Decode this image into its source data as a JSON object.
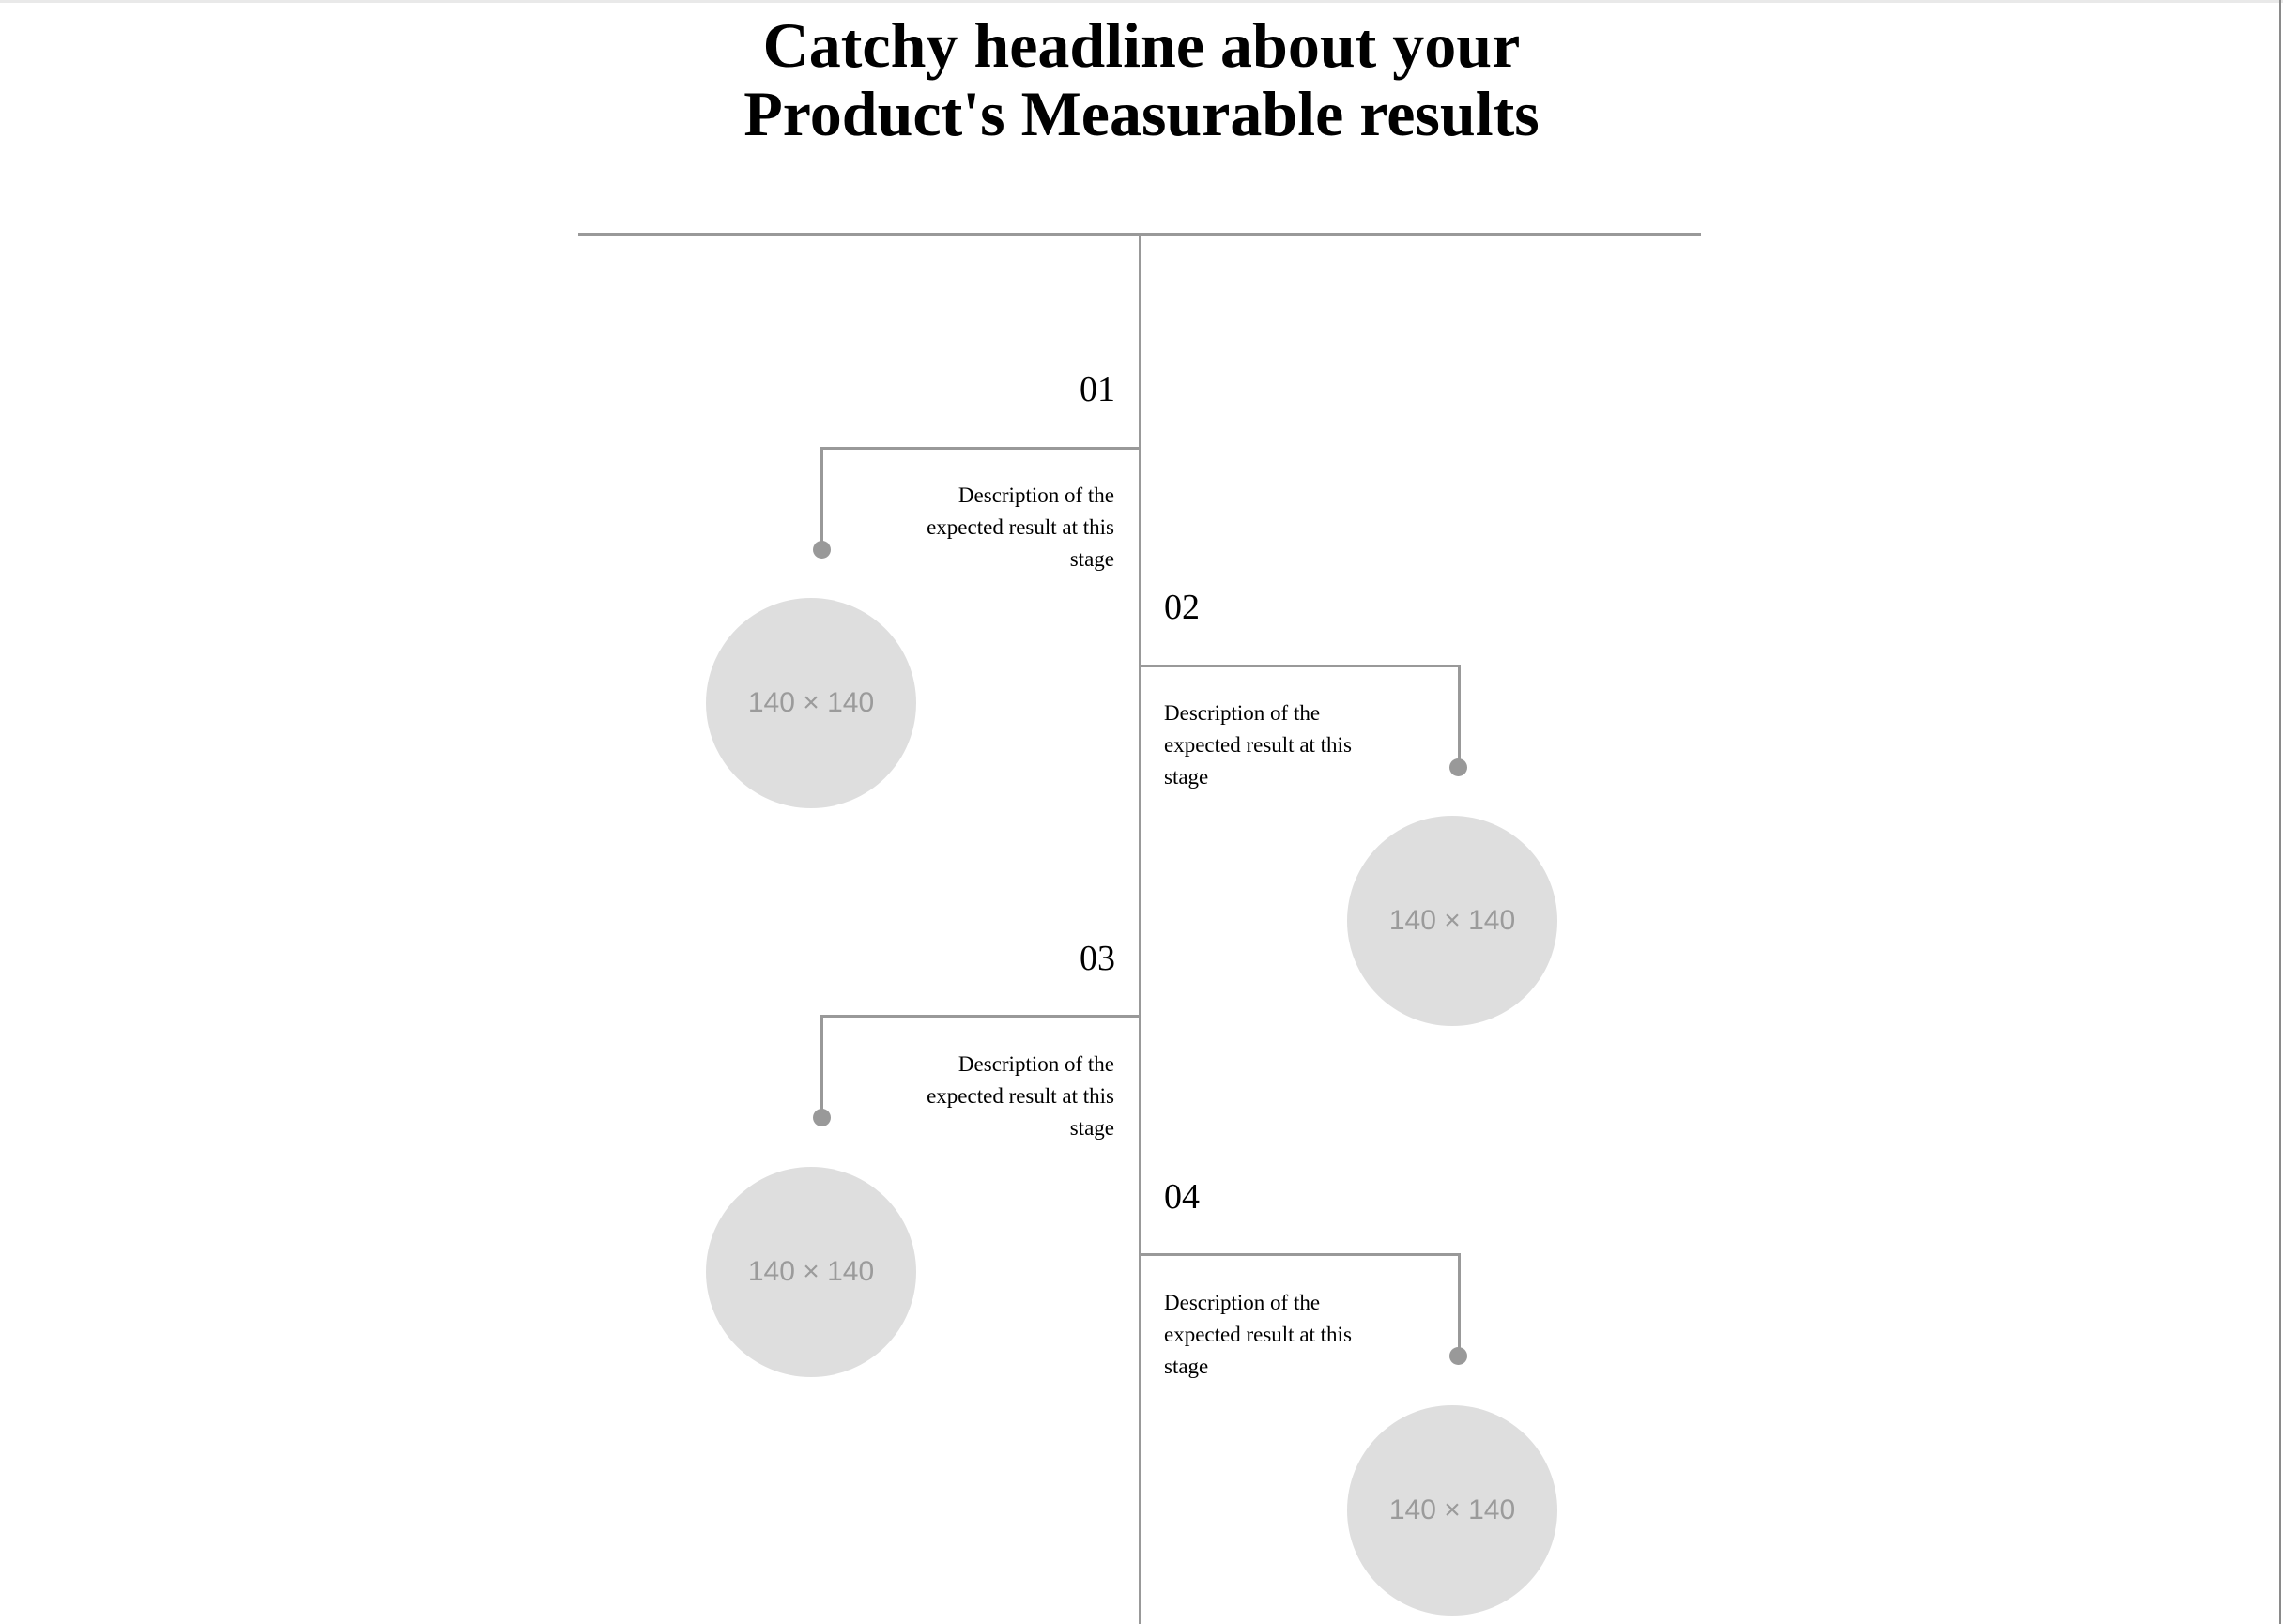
{
  "headline": {
    "line1": "Catchy headline about your",
    "line2": "Product's Measurable results"
  },
  "stages": [
    {
      "number": "01",
      "description": "Description of the expected result at this stage",
      "image_label": "140 × 140"
    },
    {
      "number": "02",
      "description": "Description of the expected result at this stage",
      "image_label": "140 × 140"
    },
    {
      "number": "03",
      "description": "Description of the expected result at this stage",
      "image_label": "140 × 140"
    },
    {
      "number": "04",
      "description": "Description of the expected result at this stage",
      "image_label": "140 × 140"
    }
  ]
}
